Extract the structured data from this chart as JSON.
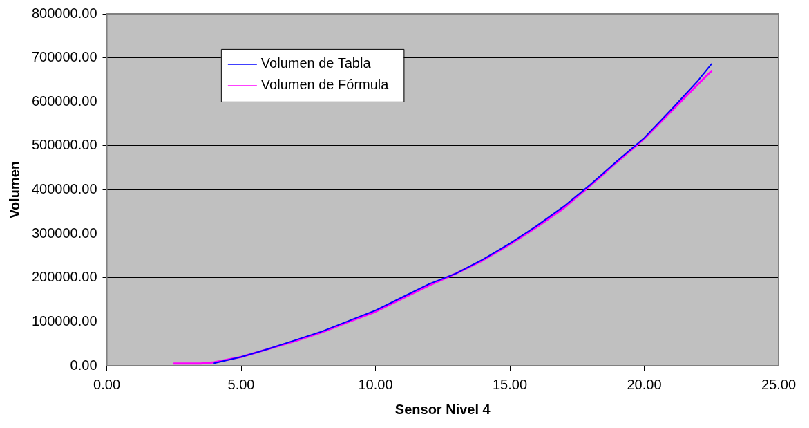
{
  "chart_data": {
    "type": "line",
    "xlabel": "Sensor Nivel 4",
    "ylabel": "Volumen",
    "xlim": [
      0,
      25
    ],
    "xticks": [
      {
        "value": 0,
        "label": "0.00"
      },
      {
        "value": 5,
        "label": "5.00"
      },
      {
        "value": 10,
        "label": "10.00"
      },
      {
        "value": 15,
        "label": "15.00"
      },
      {
        "value": 20,
        "label": "20.00"
      },
      {
        "value": 25,
        "label": "25.00"
      }
    ],
    "ylim": [
      0,
      800000
    ],
    "yticks": [
      {
        "value": 0,
        "label": "0.00"
      },
      {
        "value": 100000,
        "label": "100000.00"
      },
      {
        "value": 200000,
        "label": "200000.00"
      },
      {
        "value": 300000,
        "label": "300000.00"
      },
      {
        "value": 400000,
        "label": "400000.00"
      },
      {
        "value": 500000,
        "label": "500000.00"
      },
      {
        "value": 600000,
        "label": "600000.00"
      },
      {
        "value": 700000,
        "label": "700000.00"
      },
      {
        "value": 800000,
        "label": "800000.00"
      }
    ],
    "x": [
      2.5,
      3.5,
      4,
      5,
      6,
      7,
      8,
      9,
      10,
      11,
      12,
      13,
      14,
      15,
      16,
      17,
      18,
      19,
      20,
      21,
      22,
      22.5
    ],
    "series": [
      {
        "name": "Volumen de Tabla",
        "color": "#0000ff",
        "values": [
          null,
          null,
          6000,
          20000,
          38000,
          58000,
          78000,
          102000,
          126000,
          156000,
          186000,
          210000,
          242000,
          278000,
          318000,
          362000,
          412000,
          466000,
          518000,
          582000,
          648000,
          686000
        ]
      },
      {
        "name": "Volumen de Fórmula",
        "color": "#ff00ff",
        "values": [
          5000,
          5000,
          8000,
          20000,
          38000,
          56000,
          76000,
          100000,
          123000,
          153000,
          183000,
          210000,
          240000,
          276000,
          315000,
          358000,
          410000,
          464000,
          516000,
          578000,
          640000,
          670000
        ]
      }
    ],
    "grid": "y",
    "legend": "top left",
    "marker": "none",
    "line_style": "solid"
  }
}
